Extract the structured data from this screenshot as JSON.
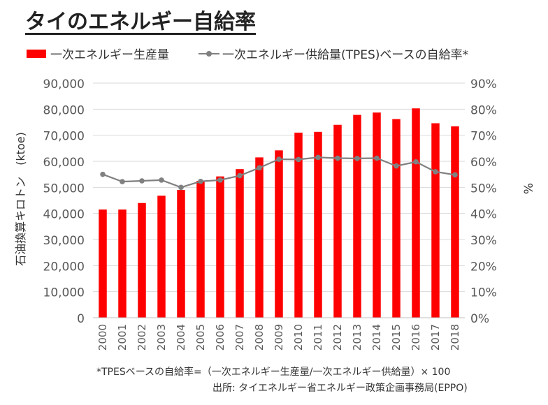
{
  "title": "タイのエネルギー自給率",
  "legend": {
    "bar_label": "一次エネルギー生産量",
    "line_label": "一次エネルギー供給量(TPES)ベースの自給率*"
  },
  "notes": {
    "formula": "*TPESベースの自給率=（一次エネルギー生産量/一次エネルギー供給量）× 100",
    "source": "出所: タイエネルギー省エネルギー政策企画事務局(EPPO)"
  },
  "colors": {
    "bar": "#ff0000",
    "line": "#808080",
    "grid": "#d9d9d9",
    "text": "#595959"
  },
  "chart_data": {
    "type": "bar",
    "categories": [
      "2000",
      "2001",
      "2002",
      "2003",
      "2004",
      "2005",
      "2006",
      "2007",
      "2008",
      "2009",
      "2010",
      "2011",
      "2012",
      "2013",
      "2014",
      "2015",
      "2016",
      "2017",
      "2018"
    ],
    "series": [
      {
        "name": "一次エネルギー生産量",
        "type": "bar",
        "axis": "left",
        "values": [
          41500,
          41500,
          44000,
          46800,
          49000,
          52500,
          54200,
          57000,
          61500,
          64200,
          71000,
          71300,
          74000,
          77800,
          78700,
          76200,
          80300,
          74600,
          73400
        ]
      },
      {
        "name": "一次エネルギー供給量(TPES)ベースの自給率*",
        "type": "line",
        "axis": "right",
        "values": [
          55.0,
          52.2,
          52.5,
          52.8,
          50.0,
          52.3,
          52.8,
          54.5,
          57.5,
          60.8,
          60.7,
          61.5,
          61.2,
          61.1,
          61.2,
          58.2,
          59.8,
          56.0,
          54.8
        ]
      }
    ],
    "ylabel": "石油換算キロトン　(ktoe)",
    "y2label": "%",
    "ylim": [
      0,
      90000
    ],
    "y2lim": [
      0,
      90
    ],
    "yticks": [
      "0",
      "10,000",
      "20,000",
      "30,000",
      "40,000",
      "50,000",
      "60,000",
      "70,000",
      "80,000",
      "90,000"
    ],
    "y2ticks": [
      "0%",
      "10%",
      "20%",
      "30%",
      "40%",
      "50%",
      "60%",
      "70%",
      "80%",
      "90%"
    ],
    "grid": true,
    "legend_position": "top"
  }
}
